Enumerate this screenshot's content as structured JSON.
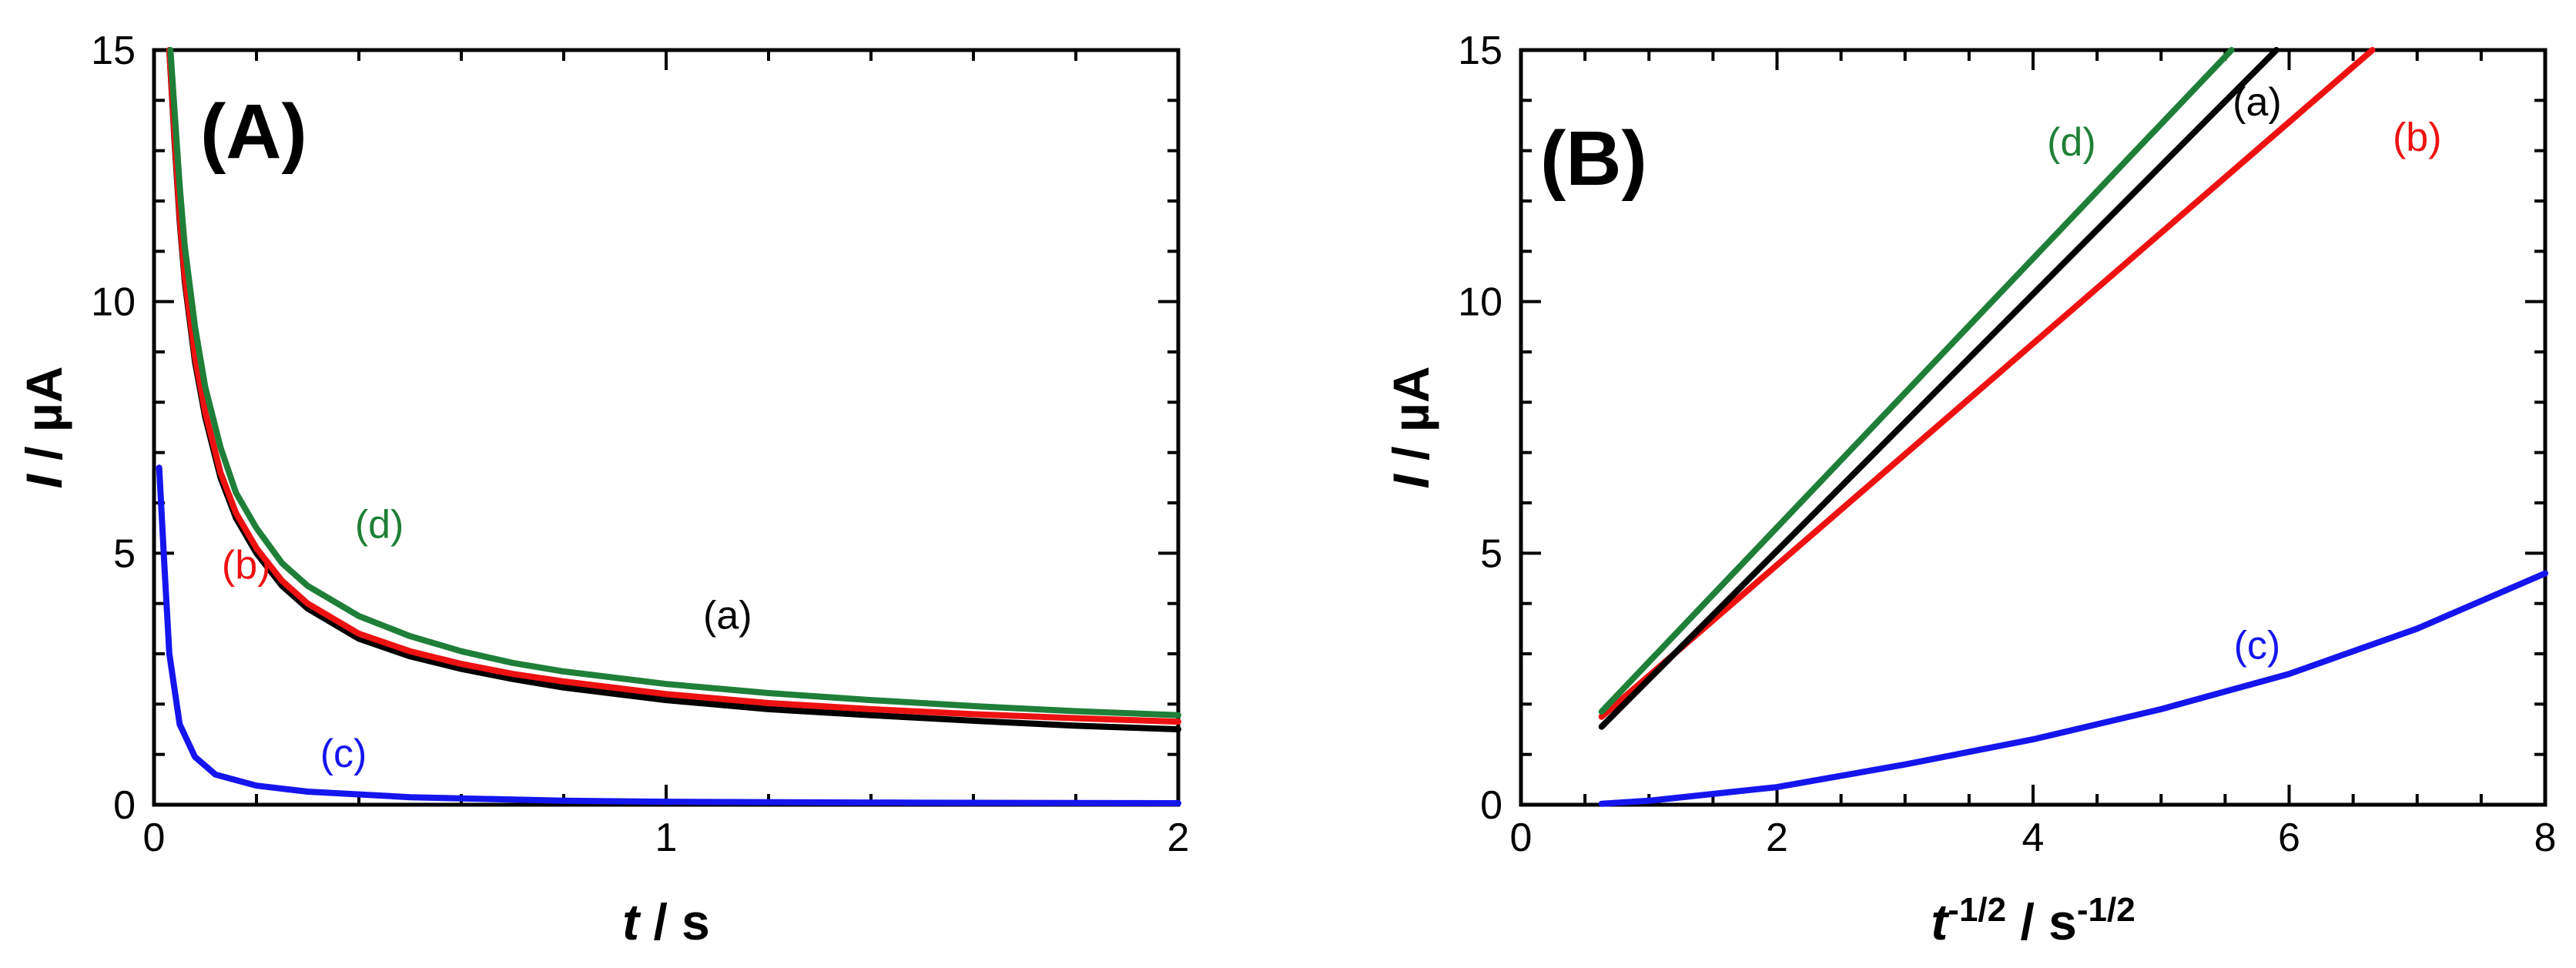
{
  "colors": {
    "a": "#000000",
    "b": "#ee1111",
    "c": "#1515ee",
    "d": "#1f7f38"
  },
  "chart_data": [
    {
      "id": "A",
      "type": "line",
      "panel_label": "(A)",
      "xlabel": {
        "var": "t",
        "unit": " / s"
      },
      "ylabel": {
        "var": "I",
        "unit": " / µA"
      },
      "xlim": [
        0,
        2
      ],
      "ylim": [
        0,
        15
      ],
      "xticks": [
        "0",
        "1",
        "2"
      ],
      "yticks": [
        "0",
        "5",
        "10",
        "15"
      ],
      "series": [
        {
          "key": "a",
          "name": "(a)",
          "color": "#000000",
          "x": [
            0.03,
            0.04,
            0.05,
            0.06,
            0.08,
            0.1,
            0.13,
            0.16,
            0.2,
            0.25,
            0.3,
            0.4,
            0.5,
            0.6,
            0.7,
            0.8,
            1.0,
            1.2,
            1.4,
            1.6,
            1.8,
            2.0
          ],
          "y": [
            15.0,
            13.2,
            11.6,
            10.4,
            8.8,
            7.7,
            6.5,
            5.7,
            5.0,
            4.35,
            3.9,
            3.3,
            2.95,
            2.7,
            2.5,
            2.33,
            2.08,
            1.9,
            1.78,
            1.67,
            1.57,
            1.5
          ]
        },
        {
          "key": "b",
          "name": "(b)",
          "color": "#ee1111",
          "x": [
            0.03,
            0.04,
            0.05,
            0.06,
            0.08,
            0.1,
            0.13,
            0.16,
            0.2,
            0.25,
            0.3,
            0.4,
            0.5,
            0.6,
            0.7,
            0.8,
            1.0,
            1.2,
            1.4,
            1.6,
            1.8,
            2.0
          ],
          "y": [
            15.0,
            13.3,
            11.7,
            10.5,
            8.9,
            7.8,
            6.6,
            5.8,
            5.1,
            4.45,
            4.0,
            3.4,
            3.05,
            2.8,
            2.6,
            2.45,
            2.2,
            2.02,
            1.9,
            1.8,
            1.72,
            1.65
          ]
        },
        {
          "key": "d",
          "name": "(d)",
          "color": "#1f7f38",
          "x": [
            0.032,
            0.04,
            0.05,
            0.06,
            0.08,
            0.1,
            0.13,
            0.16,
            0.2,
            0.25,
            0.3,
            0.4,
            0.5,
            0.6,
            0.7,
            0.8,
            1.0,
            1.2,
            1.4,
            1.6,
            1.8,
            2.0
          ],
          "y": [
            15.0,
            13.8,
            12.3,
            11.1,
            9.5,
            8.3,
            7.1,
            6.2,
            5.5,
            4.8,
            4.35,
            3.75,
            3.35,
            3.05,
            2.82,
            2.65,
            2.4,
            2.22,
            2.08,
            1.96,
            1.86,
            1.78
          ]
        },
        {
          "key": "c",
          "name": "(c)",
          "color": "#1515ee",
          "x": [
            0.01,
            0.02,
            0.03,
            0.05,
            0.08,
            0.12,
            0.2,
            0.3,
            0.5,
            0.8,
            1.0,
            1.5,
            2.0
          ],
          "y": [
            6.7,
            4.8,
            3.0,
            1.6,
            0.95,
            0.6,
            0.38,
            0.26,
            0.15,
            0.08,
            0.06,
            0.04,
            0.03
          ]
        }
      ],
      "labels": [
        {
          "text": "(a)",
          "color": "#000000",
          "x": 1.12,
          "y": 3.5
        },
        {
          "text": "(b)",
          "color": "#ee1111",
          "x": 0.18,
          "y": 4.5
        },
        {
          "text": "(c)",
          "color": "#1515ee",
          "x": 0.37,
          "y": 0.75
        },
        {
          "text": "(d)",
          "color": "#1f7f38",
          "x": 0.44,
          "y": 5.3
        }
      ]
    },
    {
      "id": "B",
      "type": "line",
      "panel_label": "(B)",
      "xlabel": {
        "var": "t",
        "sup1": "-1/2",
        "mid": " / s",
        "sup2": "-1/2"
      },
      "ylabel": {
        "var": "I",
        "unit": " / µA"
      },
      "xlim": [
        0,
        8
      ],
      "ylim": [
        0,
        15
      ],
      "xticks": [
        "0",
        "2",
        "4",
        "6",
        "8"
      ],
      "yticks": [
        "0",
        "5",
        "10",
        "15"
      ],
      "series": [
        {
          "key": "b",
          "name": "(b)",
          "color": "#ee1111",
          "x": [
            0.63,
            6.65
          ],
          "y": [
            1.75,
            15.0
          ]
        },
        {
          "key": "a",
          "name": "(a)",
          "color": "#000000",
          "x": [
            0.63,
            5.9
          ],
          "y": [
            1.55,
            15.0
          ]
        },
        {
          "key": "d",
          "name": "(d)",
          "color": "#1f7f38",
          "x": [
            0.63,
            5.55
          ],
          "y": [
            1.85,
            15.0
          ]
        },
        {
          "key": "c",
          "name": "(c)",
          "color": "#1515ee",
          "x": [
            0.63,
            1.0,
            2.0,
            3.0,
            4.0,
            5.0,
            6.0,
            7.0,
            8.0
          ],
          "y": [
            0.02,
            0.08,
            0.35,
            0.8,
            1.3,
            1.9,
            2.6,
            3.5,
            4.6
          ]
        }
      ],
      "labels": [
        {
          "text": "(a)",
          "color": "#000000",
          "x": 5.75,
          "y": 13.7
        },
        {
          "text": "(b)",
          "color": "#ee1111",
          "x": 7.0,
          "y": 13.0
        },
        {
          "text": "(c)",
          "color": "#1515ee",
          "x": 5.75,
          "y": 2.9
        },
        {
          "text": "(d)",
          "color": "#1f7f38",
          "x": 4.3,
          "y": 12.9
        }
      ]
    }
  ]
}
